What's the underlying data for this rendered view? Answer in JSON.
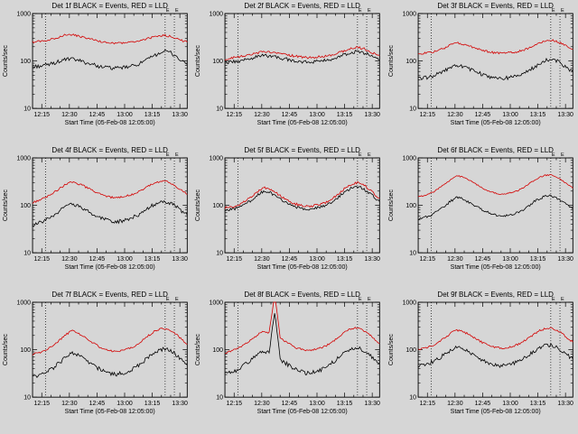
{
  "window": {
    "background": "#d6d6d6"
  },
  "colors": {
    "events": "#000000",
    "lld": "#d40000",
    "axis": "#000000"
  },
  "shared": {
    "ylabel": "Counts/sec",
    "xlabel": "Start Time (05-Feb-08 12:05:00)",
    "x_tick_labels": [
      "12:15",
      "12:30",
      "12:45",
      "13:00",
      "13:15",
      "13:30"
    ],
    "x_tick_minutes": [
      15,
      30,
      45,
      60,
      75,
      90
    ],
    "x_minor_step": 5,
    "xlim": [
      10,
      94
    ],
    "ylim": [
      10,
      1000
    ],
    "y_scale": "log",
    "y_tick_labels": [
      "1000",
      "100",
      "10"
    ],
    "y_tick_values": [
      1000,
      100,
      10
    ],
    "vlines": [
      {
        "x": 17,
        "label": ""
      },
      {
        "x": 82,
        "label": "E"
      },
      {
        "x": 87,
        "label": "E"
      }
    ],
    "x_minutes": [
      10,
      13,
      16,
      19,
      22,
      25,
      28,
      31,
      34,
      37,
      40,
      43,
      46,
      49,
      52,
      55,
      58,
      61,
      64,
      67,
      70,
      73,
      76,
      79,
      82,
      85,
      88,
      91,
      94
    ]
  },
  "chart_data": [
    {
      "type": "line",
      "title": "Det 1f BLACK = Events, RED = LLD",
      "series": [
        {
          "name": "Events",
          "color": "#000000",
          "noise": 0.09,
          "values": [
            75,
            78,
            80,
            85,
            92,
            100,
            108,
            110,
            105,
            98,
            90,
            84,
            78,
            74,
            72,
            70,
            72,
            74,
            78,
            85,
            95,
            110,
            130,
            150,
            160,
            150,
            125,
            100,
            85
          ]
        },
        {
          "name": "LLD",
          "color": "#d40000",
          "noise": 0.05,
          "values": [
            250,
            260,
            265,
            280,
            300,
            330,
            355,
            360,
            340,
            320,
            300,
            280,
            260,
            250,
            240,
            235,
            240,
            245,
            250,
            260,
            280,
            300,
            320,
            340,
            345,
            330,
            300,
            270,
            250
          ]
        }
      ]
    },
    {
      "type": "line",
      "title": "Det 2f BLACK = Events, RED = LLD",
      "series": [
        {
          "name": "Events",
          "color": "#000000",
          "noise": 0.08,
          "values": [
            90,
            95,
            98,
            102,
            108,
            115,
            125,
            132,
            128,
            122,
            115,
            110,
            105,
            100,
            97,
            95,
            97,
            99,
            102,
            107,
            115,
            128,
            140,
            152,
            160,
            152,
            135,
            118,
            105
          ]
        },
        {
          "name": "LLD",
          "color": "#d40000",
          "noise": 0.06,
          "values": [
            110,
            115,
            120,
            125,
            130,
            140,
            150,
            160,
            155,
            150,
            140,
            135,
            130,
            125,
            120,
            118,
            120,
            122,
            125,
            130,
            140,
            155,
            170,
            185,
            195,
            185,
            165,
            145,
            130
          ]
        }
      ]
    },
    {
      "type": "line",
      "title": "Det 3f BLACK = Events, RED = LLD",
      "series": [
        {
          "name": "Events",
          "color": "#000000",
          "noise": 0.09,
          "values": [
            42,
            44,
            46,
            50,
            56,
            64,
            75,
            82,
            78,
            70,
            62,
            56,
            50,
            46,
            44,
            42,
            44,
            46,
            49,
            54,
            62,
            74,
            88,
            102,
            110,
            102,
            86,
            70,
            58
          ]
        },
        {
          "name": "LLD",
          "color": "#d40000",
          "noise": 0.05,
          "values": [
            140,
            145,
            150,
            160,
            175,
            195,
            220,
            240,
            230,
            215,
            195,
            180,
            165,
            155,
            148,
            145,
            148,
            152,
            158,
            168,
            185,
            210,
            240,
            265,
            275,
            260,
            230,
            200,
            175
          ]
        }
      ]
    },
    {
      "type": "line",
      "title": "Det 4f BLACK = Events, RED = LLD",
      "series": [
        {
          "name": "Events",
          "color": "#000000",
          "noise": 0.09,
          "values": [
            38,
            42,
            47,
            55,
            65,
            78,
            95,
            105,
            100,
            88,
            75,
            65,
            57,
            51,
            47,
            45,
            47,
            50,
            55,
            62,
            74,
            90,
            105,
            118,
            122,
            112,
            94,
            76,
            62
          ]
        },
        {
          "name": "LLD",
          "color": "#d40000",
          "noise": 0.05,
          "values": [
            115,
            125,
            140,
            160,
            190,
            230,
            280,
            310,
            295,
            265,
            230,
            200,
            175,
            160,
            150,
            145,
            150,
            158,
            170,
            190,
            220,
            255,
            290,
            315,
            320,
            295,
            250,
            205,
            170
          ]
        }
      ]
    },
    {
      "type": "line",
      "title": "Det 5f BLACK = Events, RED = LLD",
      "series": [
        {
          "name": "Events",
          "color": "#000000",
          "noise": 0.07,
          "values": [
            78,
            82,
            87,
            96,
            112,
            135,
            168,
            200,
            188,
            162,
            135,
            115,
            100,
            92,
            86,
            84,
            86,
            90,
            98,
            110,
            132,
            165,
            200,
            235,
            248,
            228,
            188,
            150,
            120
          ]
        },
        {
          "name": "LLD",
          "color": "#d40000",
          "noise": 0.06,
          "values": [
            88,
            92,
            98,
            110,
            130,
            160,
            200,
            240,
            225,
            195,
            160,
            135,
            115,
            105,
            98,
            95,
            98,
            103,
            112,
            128,
            155,
            195,
            240,
            285,
            300,
            275,
            225,
            175,
            140
          ]
        }
      ]
    },
    {
      "type": "line",
      "title": "Det 6f BLACK = Events, RED = LLD",
      "series": [
        {
          "name": "Events",
          "color": "#000000",
          "noise": 0.06,
          "values": [
            50,
            54,
            60,
            70,
            84,
            102,
            126,
            145,
            138,
            120,
            102,
            88,
            76,
            68,
            62,
            59,
            61,
            65,
            72,
            82,
            98,
            120,
            140,
            155,
            158,
            145,
            122,
            100,
            84
          ]
        },
        {
          "name": "LLD",
          "color": "#d40000",
          "noise": 0.03,
          "values": [
            150,
            160,
            175,
            200,
            240,
            290,
            360,
            420,
            400,
            355,
            300,
            255,
            220,
            195,
            180,
            172,
            178,
            188,
            205,
            235,
            280,
            335,
            390,
            430,
            435,
            400,
            340,
            280,
            230
          ]
        }
      ]
    },
    {
      "type": "line",
      "title": "Det 7f BLACK = Events, RED = LLD",
      "series": [
        {
          "name": "Events",
          "color": "#000000",
          "noise": 0.1,
          "values": [
            26,
            28,
            31,
            36,
            44,
            55,
            70,
            85,
            80,
            68,
            56,
            47,
            40,
            35,
            32,
            30,
            32,
            34,
            38,
            45,
            56,
            72,
            88,
            100,
            104,
            95,
            78,
            60,
            47
          ]
        },
        {
          "name": "LLD",
          "color": "#d40000",
          "noise": 0.05,
          "values": [
            80,
            85,
            93,
            108,
            130,
            162,
            205,
            250,
            235,
            200,
            165,
            138,
            118,
            105,
            96,
            92,
            96,
            102,
            112,
            130,
            160,
            200,
            240,
            272,
            278,
            255,
            210,
            165,
            130
          ]
        }
      ]
    },
    {
      "type": "line",
      "title": "Det 8f BLACK = Events, RED = LLD",
      "series": [
        {
          "name": "Events",
          "color": "#000000",
          "noise": 0.1,
          "values": [
            30,
            33,
            37,
            43,
            52,
            64,
            80,
            95,
            88,
            650,
            62,
            52,
            44,
            38,
            34,
            32,
            34,
            36,
            41,
            48,
            60,
            76,
            93,
            106,
            110,
            100,
            82,
            64,
            50
          ]
        },
        {
          "name": "LLD",
          "color": "#d40000",
          "noise": 0.05,
          "values": [
            85,
            92,
            102,
            118,
            140,
            172,
            210,
            245,
            225,
            1500,
            175,
            148,
            126,
            110,
            100,
            95,
            99,
            106,
            117,
            135,
            165,
            205,
            248,
            280,
            288,
            262,
            216,
            170,
            134
          ]
        }
      ]
    },
    {
      "type": "line",
      "title": "Det 9f BLACK = Events, RED = LLD",
      "series": [
        {
          "name": "Events",
          "color": "#000000",
          "noise": 0.09,
          "values": [
            45,
            48,
            52,
            59,
            69,
            83,
            100,
            112,
            106,
            92,
            78,
            67,
            58,
            52,
            48,
            46,
            48,
            51,
            56,
            64,
            77,
            94,
            110,
            122,
            125,
            115,
            96,
            78,
            63
          ]
        },
        {
          "name": "LLD",
          "color": "#d40000",
          "noise": 0.05,
          "values": [
            100,
            106,
            115,
            130,
            152,
            185,
            225,
            260,
            245,
            215,
            182,
            155,
            135,
            122,
            112,
            108,
            112,
            118,
            130,
            148,
            178,
            215,
            252,
            280,
            285,
            262,
            220,
            178,
            145
          ]
        }
      ]
    }
  ]
}
